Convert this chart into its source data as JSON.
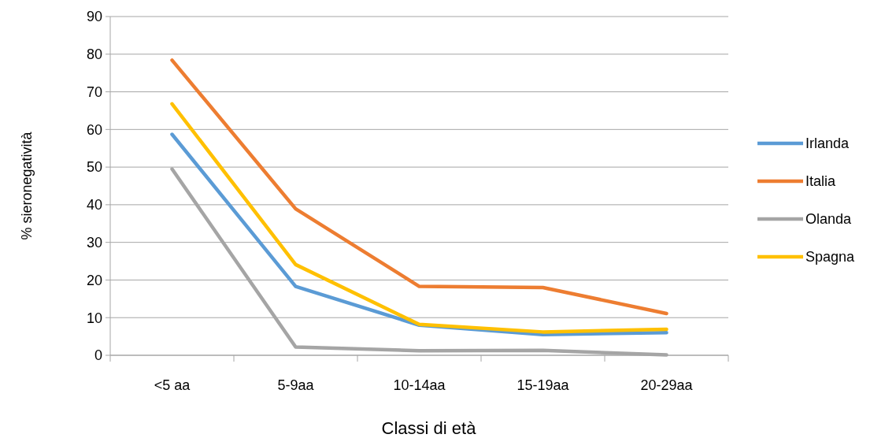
{
  "chart_data": {
    "type": "line",
    "xlabel": "Classi di età",
    "ylabel": "% sieronegatività",
    "categories": [
      "<5 aa",
      "5-9aa",
      "10-14aa",
      "15-19aa",
      "20-29aa"
    ],
    "series": [
      {
        "name": "Irlanda",
        "color": "#5b9bd5",
        "values": [
          58.7,
          18.3,
          8.0,
          5.5,
          6.0
        ]
      },
      {
        "name": "Italia",
        "color": "#ed7d31",
        "values": [
          78.4,
          38.9,
          18.3,
          18.0,
          11.1
        ]
      },
      {
        "name": "Olanda",
        "color": "#a5a5a5",
        "values": [
          49.5,
          2.2,
          1.2,
          1.3,
          0.1
        ]
      },
      {
        "name": "Spagna",
        "color": "#ffc000",
        "values": [
          66.8,
          24.1,
          8.2,
          6.2,
          6.9
        ]
      }
    ],
    "ylim": [
      0,
      90
    ],
    "yticks": [
      0,
      10,
      20,
      30,
      40,
      50,
      60,
      70,
      80,
      90
    ],
    "grid": "y",
    "legend": "right",
    "marker": "none",
    "line_style": "solid"
  }
}
